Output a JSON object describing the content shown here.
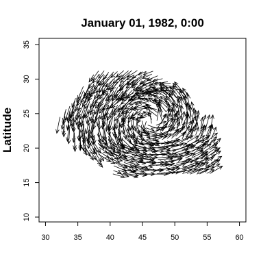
{
  "chart_data": {
    "type": "vector-field",
    "title": "January 01, 1982, 0:00",
    "xlabel": "",
    "ylabel": "Latitude",
    "xlim": [
      29,
      61
    ],
    "ylim": [
      9.3,
      35.9
    ],
    "xticks": [
      30,
      35,
      40,
      45,
      50,
      55,
      60
    ],
    "yticks": [
      10,
      15,
      20,
      25,
      30,
      35
    ],
    "grid": false,
    "legend": "none",
    "arrow_color": "#000000"
  }
}
